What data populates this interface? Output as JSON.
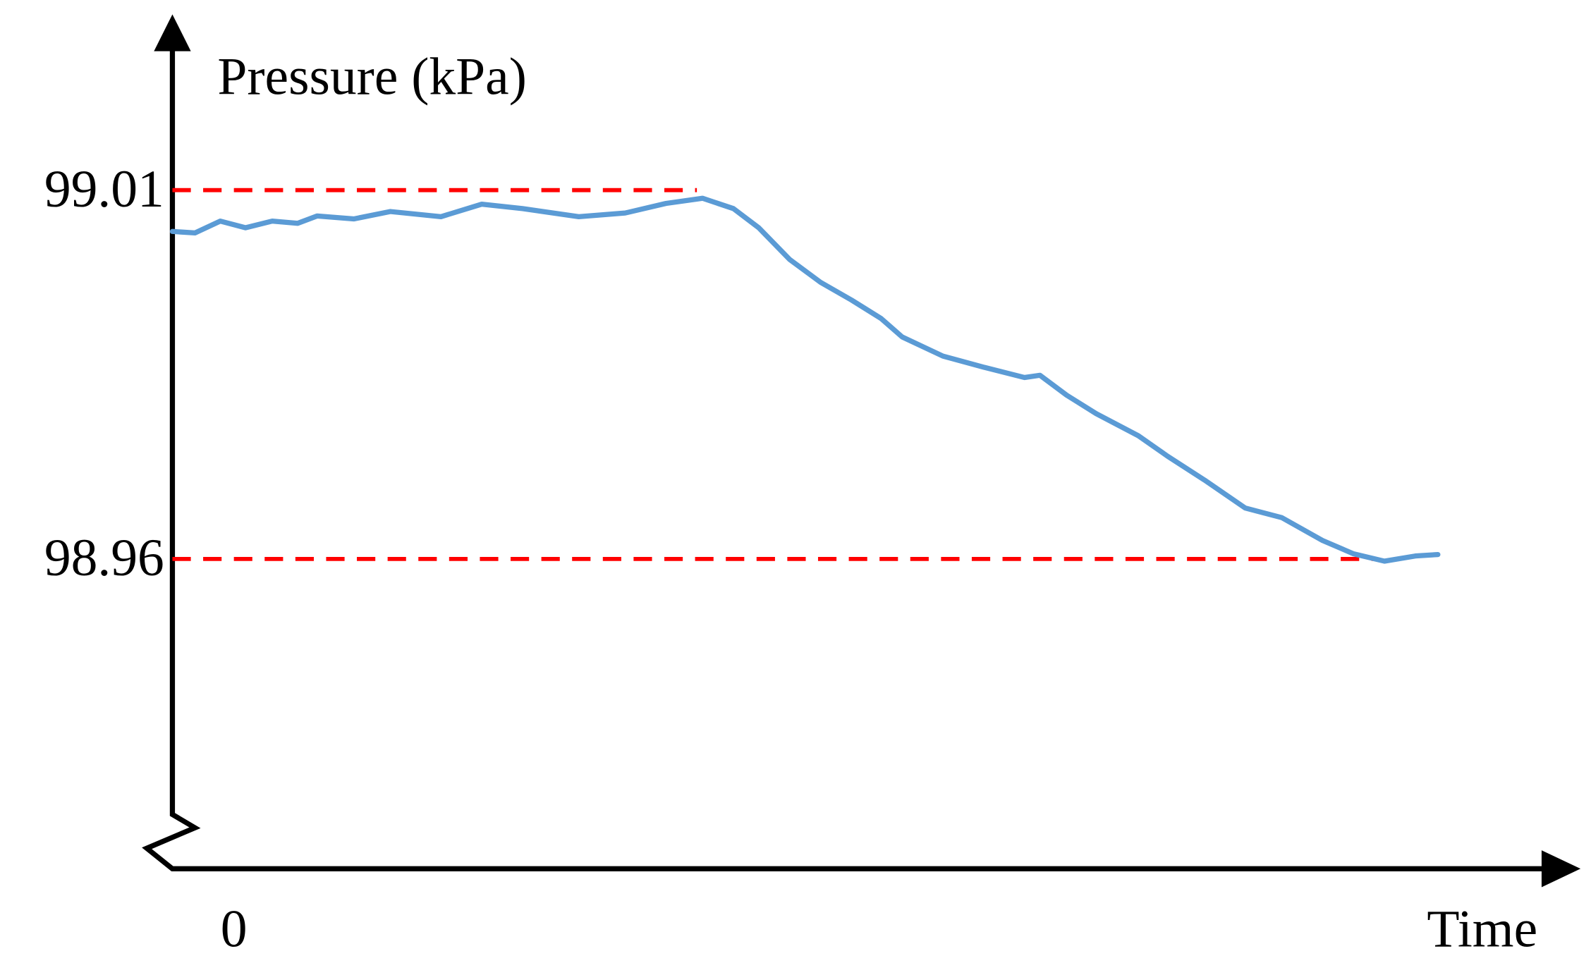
{
  "chart_data": {
    "type": "line",
    "y_label": "Pressure (kPa)",
    "x_label": "Time",
    "xlim": [
      0,
      100
    ],
    "ylim": [
      98.918,
      99.033
    ],
    "xticks": [
      0
    ],
    "yticks": [
      98.96,
      99.01
    ],
    "reference_lines": [
      {
        "y": 99.01,
        "xlim": [
          0,
          37.3
        ],
        "color": "#ff0000",
        "style": "dashed"
      },
      {
        "y": 98.96,
        "xlim": [
          0,
          85.4
        ],
        "color": "#ff0000",
        "style": "dashed"
      }
    ],
    "x": [
      0,
      1.6,
      3.4,
      5.2,
      7.1,
      8.9,
      10.3,
      12.9,
      15.5,
      19.1,
      22,
      24.9,
      28.9,
      32.2,
      35.1,
      37.7,
      39.9,
      41.7,
      43.9,
      46.1,
      48.3,
      50.4,
      51.9,
      54.8,
      57.7,
      60.6,
      61.7,
      63.6,
      65.7,
      68.7,
      70.8,
      73.4,
      76.3,
      78.9,
      81.8,
      84,
      86.2,
      88.4,
      90
    ],
    "series": [
      {
        "color": "#5b9bd5",
        "values": [
          99.0044,
          99.0042,
          99.0058,
          99.0049,
          99.0058,
          99.0055,
          99.0065,
          99.0061,
          99.0071,
          99.0064,
          99.0081,
          99.0075,
          99.0064,
          99.0069,
          99.0082,
          99.0089,
          99.0075,
          99.0049,
          99.0006,
          98.9975,
          98.9951,
          98.9926,
          98.9901,
          98.9875,
          98.986,
          98.9846,
          98.9849,
          98.9822,
          98.9797,
          98.9767,
          98.9739,
          98.9707,
          98.9669,
          98.9656,
          98.9625,
          98.9607,
          98.9597,
          98.9604,
          98.9606
        ]
      }
    ]
  }
}
